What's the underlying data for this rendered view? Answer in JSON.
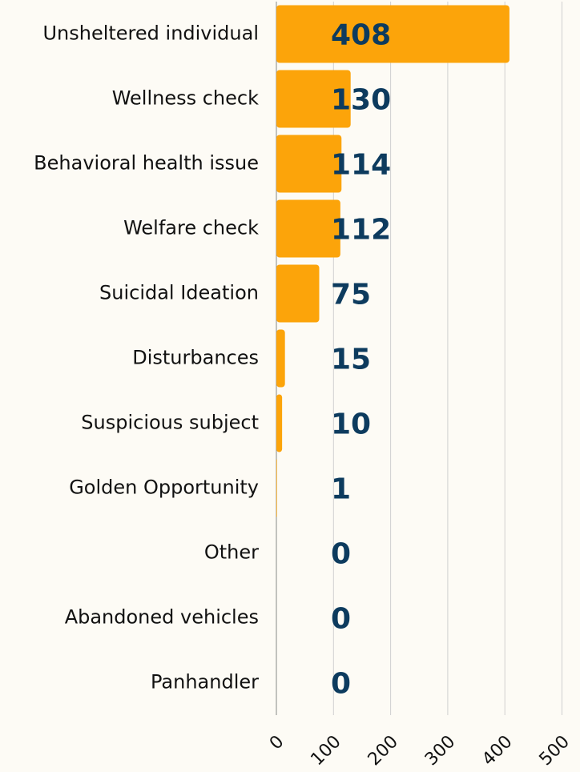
{
  "chart_data": {
    "type": "bar",
    "orientation": "horizontal",
    "categories": [
      "Unsheltered individual",
      "Wellness check",
      "Behavioral health issue",
      "Welfare check",
      "Suicidal Ideation",
      "Disturbances",
      "Suspicious subject",
      "Golden Opportunity",
      "Other",
      "Abandoned vehicles",
      "Panhandler"
    ],
    "values": [
      408,
      130,
      114,
      112,
      75,
      15,
      10,
      1,
      0,
      0,
      0
    ],
    "color": "#fca40a",
    "xlim": [
      0,
      500
    ],
    "xticks": [
      0,
      100,
      200,
      300,
      400,
      500
    ],
    "grid": true
  }
}
